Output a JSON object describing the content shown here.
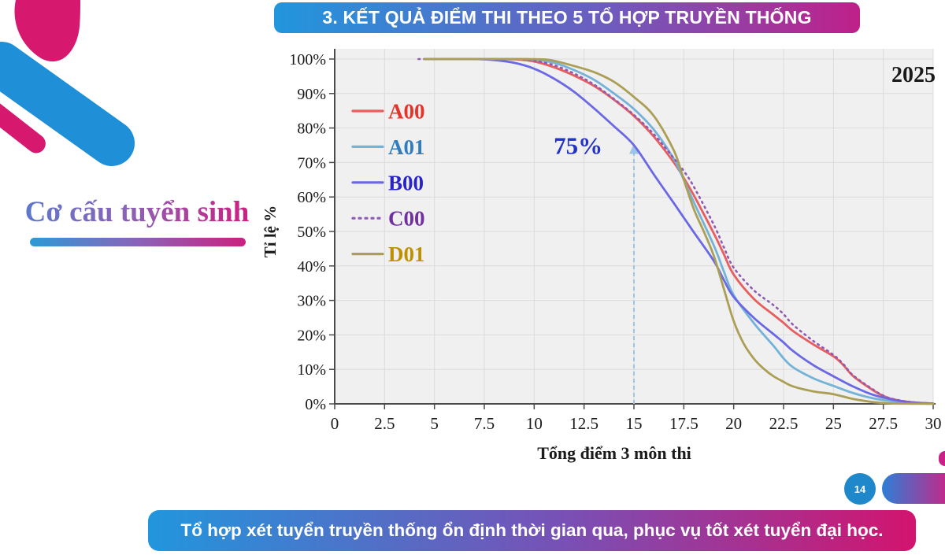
{
  "slide": {
    "title": "3. KẾT QUẢ ĐIỂM THI THEO 5 TỔ HỢP TRUYỀN THỐNG",
    "sidebar_caption": "Cơ cấu tuyển sinh",
    "footer_text": "Tổ hợp xét tuyển truyền thống ổn định thời gian qua, phục vụ tốt xét tuyển đại học.",
    "page_number": "14"
  },
  "colors": {
    "banner_gradient_start": "#2196dd",
    "banner_gradient_end": "#bf2089",
    "footer_gradient_start": "#2196dd",
    "footer_gradient_end": "#d2146e",
    "logo_blue": "#1f8fd8",
    "logo_magenta": "#d6196f",
    "page_circle_blue": "#1e88ca",
    "plot_background": "#f1f0f1",
    "gridline": "#dcdbdc",
    "axis": "#4a4a4a"
  },
  "chart_data": {
    "type": "line",
    "year_label": "2025",
    "xlabel": "Tổng điểm 3 môn thi",
    "ylabel": "Tỉ lệ %",
    "xlim": [
      0,
      30
    ],
    "ylim": [
      0,
      100
    ],
    "grid": true,
    "x_tick_values": [
      0,
      2.5,
      5,
      7.5,
      10,
      12.5,
      15,
      17.5,
      20,
      22.5,
      25,
      27.5,
      30
    ],
    "x_tick_labels": [
      "0",
      "2.5",
      "5",
      "7.5",
      "10",
      "12.5",
      "15",
      "17.5",
      "20",
      "22.5",
      "25",
      "27.5",
      "30"
    ],
    "y_tick_values": [
      0,
      10,
      20,
      30,
      40,
      50,
      60,
      70,
      80,
      90,
      100
    ],
    "y_tick_labels": [
      "0%",
      "10%",
      "20%",
      "30%",
      "40%",
      "50%",
      "60%",
      "70%",
      "80%",
      "90%",
      "100%"
    ],
    "legend_position": "inside-top-left",
    "annotation": {
      "text": "75%",
      "line_x": 15,
      "arrow_y": 75,
      "label_x": 12.2,
      "label_y": 75,
      "line_color": "#9dc3e6",
      "text_color": "#2433c4"
    },
    "series": [
      {
        "name": "A00",
        "line_color": "#e85d5d",
        "label_color": "#e63329",
        "dash": "solid",
        "points": [
          [
            4.5,
            100
          ],
          [
            6,
            100
          ],
          [
            8,
            100
          ],
          [
            9,
            99.9
          ],
          [
            10,
            99.3
          ],
          [
            11,
            97.6
          ],
          [
            12,
            95.2
          ],
          [
            13,
            92.2
          ],
          [
            14,
            88.2
          ],
          [
            15,
            83.5
          ],
          [
            16,
            77.5
          ],
          [
            17,
            70
          ],
          [
            17.5,
            65.5
          ],
          [
            18,
            60.5
          ],
          [
            19,
            49.5
          ],
          [
            19.5,
            43.5
          ],
          [
            20,
            37.5
          ],
          [
            21,
            30.5
          ],
          [
            22,
            25.8
          ],
          [
            22.5,
            23.5
          ],
          [
            23,
            21
          ],
          [
            24,
            17.2
          ],
          [
            25,
            13.8
          ],
          [
            25.5,
            11.2
          ],
          [
            26,
            8
          ],
          [
            27,
            3.9
          ],
          [
            27.5,
            2.3
          ],
          [
            28,
            1.3
          ],
          [
            29,
            0.4
          ],
          [
            30,
            0.1
          ]
        ]
      },
      {
        "name": "A01",
        "line_color": "#74b2d8",
        "label_color": "#2f7cbf",
        "dash": "solid",
        "points": [
          [
            4.5,
            100
          ],
          [
            6,
            100
          ],
          [
            9,
            100
          ],
          [
            10,
            99.8
          ],
          [
            11,
            98.9
          ],
          [
            12,
            96.8
          ],
          [
            13,
            94
          ],
          [
            14,
            90
          ],
          [
            15,
            85.5
          ],
          [
            16,
            79.5
          ],
          [
            17,
            71
          ],
          [
            17.5,
            65
          ],
          [
            18,
            58.5
          ],
          [
            19,
            46
          ],
          [
            19.5,
            38.5
          ],
          [
            20,
            31.5
          ],
          [
            21,
            23.5
          ],
          [
            22,
            16.8
          ],
          [
            22.5,
            13.2
          ],
          [
            23,
            10.5
          ],
          [
            24,
            7.4
          ],
          [
            25,
            5.2
          ],
          [
            26,
            3.1
          ],
          [
            27,
            1.6
          ],
          [
            28,
            0.7
          ],
          [
            29,
            0.2
          ],
          [
            30,
            0.1
          ]
        ]
      },
      {
        "name": "B00",
        "line_color": "#6b68e6",
        "label_color": "#2824c8",
        "dash": "solid",
        "points": [
          [
            4.5,
            100
          ],
          [
            6,
            100
          ],
          [
            7,
            100
          ],
          [
            8,
            99.7
          ],
          [
            9,
            98.9
          ],
          [
            10,
            97.2
          ],
          [
            11,
            94.3
          ],
          [
            12,
            90.5
          ],
          [
            13,
            85.7
          ],
          [
            14,
            80.5
          ],
          [
            15,
            75
          ],
          [
            16,
            66.5
          ],
          [
            17,
            58.2
          ],
          [
            17.5,
            54
          ],
          [
            18,
            49.8
          ],
          [
            19,
            41.5
          ],
          [
            19.5,
            36
          ],
          [
            20,
            31
          ],
          [
            21,
            25
          ],
          [
            22,
            20.2
          ],
          [
            22.5,
            17.8
          ],
          [
            23,
            15.2
          ],
          [
            24,
            11.2
          ],
          [
            25,
            8
          ],
          [
            26,
            5
          ],
          [
            27,
            2.6
          ],
          [
            28,
            1.2
          ],
          [
            29,
            0.4
          ],
          [
            30,
            0.1
          ]
        ]
      },
      {
        "name": "C00",
        "line_color": "#8d5bb4",
        "label_color": "#7030a0",
        "dash": "dotted",
        "points": [
          [
            4.2,
            100
          ],
          [
            6,
            100
          ],
          [
            9,
            100
          ],
          [
            10,
            99.5
          ],
          [
            11,
            98.2
          ],
          [
            12,
            95.8
          ],
          [
            13,
            92.6
          ],
          [
            14,
            88.4
          ],
          [
            15,
            83.8
          ],
          [
            16,
            78.2
          ],
          [
            17,
            71.2
          ],
          [
            17.5,
            67.5
          ],
          [
            18,
            63
          ],
          [
            19,
            52
          ],
          [
            19.5,
            45.5
          ],
          [
            20,
            39.5
          ],
          [
            21,
            33
          ],
          [
            22,
            28.6
          ],
          [
            22.5,
            26
          ],
          [
            23,
            22.8
          ],
          [
            24,
            18.2
          ],
          [
            25,
            14.2
          ],
          [
            25.5,
            11.5
          ],
          [
            26,
            8.2
          ],
          [
            27,
            4.1
          ],
          [
            27.5,
            2.4
          ],
          [
            28,
            1.4
          ],
          [
            29,
            0.4
          ],
          [
            30,
            0.1
          ]
        ]
      },
      {
        "name": "D01",
        "line_color": "#ab9f55",
        "label_color": "#bf9000",
        "dash": "solid",
        "points": [
          [
            4.5,
            100
          ],
          [
            6,
            100
          ],
          [
            9.5,
            100
          ],
          [
            10.5,
            99.9
          ],
          [
            11,
            99.5
          ],
          [
            12,
            98
          ],
          [
            13,
            96.2
          ],
          [
            14,
            93.4
          ],
          [
            15,
            89
          ],
          [
            16,
            83.5
          ],
          [
            17,
            73.5
          ],
          [
            17.5,
            65
          ],
          [
            18,
            56.5
          ],
          [
            18.5,
            50
          ],
          [
            19,
            43
          ],
          [
            19.5,
            33.5
          ],
          [
            20,
            24
          ],
          [
            20.5,
            17.5
          ],
          [
            21,
            13.2
          ],
          [
            21.5,
            10.2
          ],
          [
            22,
            8
          ],
          [
            22.5,
            6.4
          ],
          [
            23,
            5
          ],
          [
            24,
            3.6
          ],
          [
            25,
            2.8
          ],
          [
            26,
            1.4
          ],
          [
            27,
            0.5
          ],
          [
            27.5,
            0.25
          ],
          [
            28,
            0.1
          ],
          [
            29,
            0.05
          ],
          [
            30,
            0
          ]
        ]
      }
    ]
  }
}
